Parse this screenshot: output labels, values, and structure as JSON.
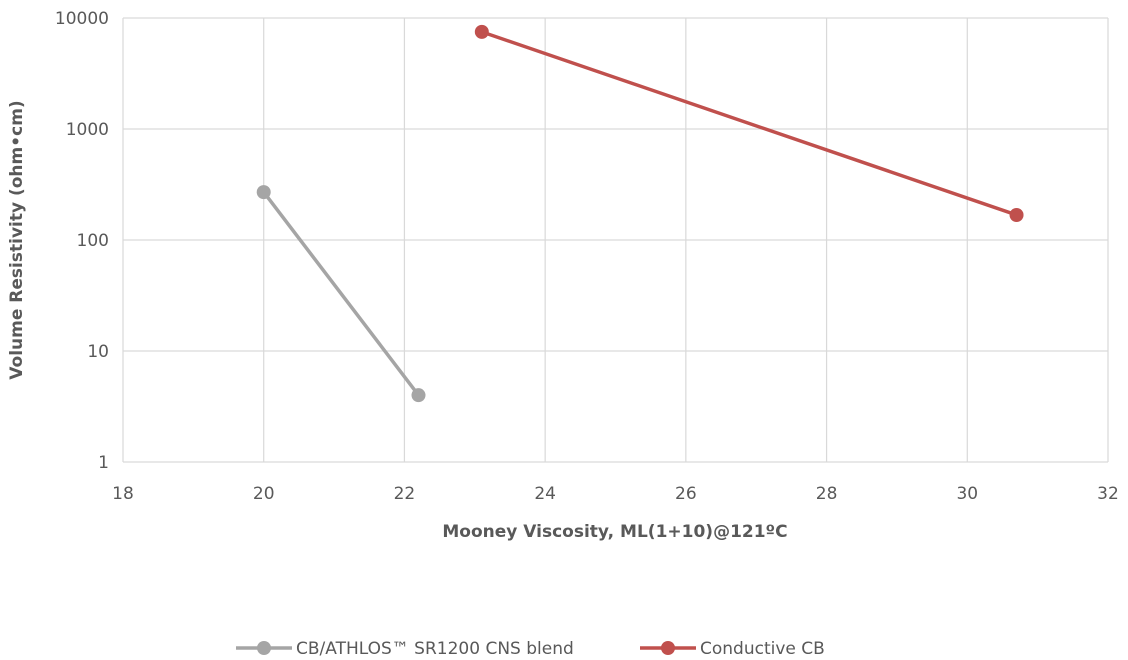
{
  "chart_data": {
    "type": "scatter",
    "title": "",
    "xlabel": "Mooney Viscosity, ML(1+10)@121ºC",
    "ylabel": "Volume Resistivity (ohm•cm)",
    "xlim": [
      18,
      32
    ],
    "ylim": [
      1,
      10000
    ],
    "yscale": "log",
    "x_ticks": [
      18,
      20,
      22,
      24,
      26,
      28,
      30,
      32
    ],
    "y_ticks": [
      1,
      10,
      100,
      1000,
      10000
    ],
    "x_tick_labels": [
      "18",
      "20",
      "22",
      "24",
      "26",
      "28",
      "30",
      "32"
    ],
    "y_tick_labels": [
      "1",
      "10",
      "100",
      "1000",
      "10000"
    ],
    "grid": true,
    "legend_position": "bottom",
    "series": [
      {
        "name": "CB/ATHLOS™ SR1200 CNS blend",
        "color": "#a5a5a5",
        "points": [
          {
            "x": 20.0,
            "y": 270
          },
          {
            "x": 22.2,
            "y": 4
          }
        ]
      },
      {
        "name": "Conductive CB",
        "color": "#c0504d",
        "points": [
          {
            "x": 23.1,
            "y": 7500
          },
          {
            "x": 30.7,
            "y": 168
          }
        ]
      }
    ]
  }
}
